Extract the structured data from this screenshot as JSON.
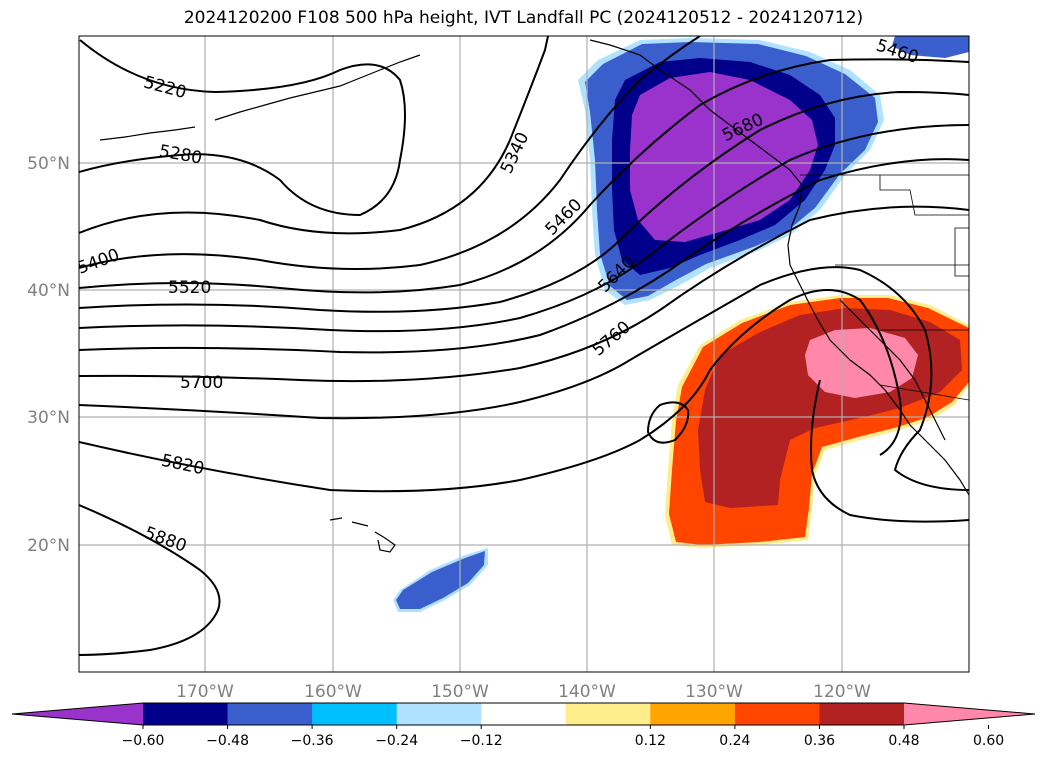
{
  "title": "2024120200 F108 500 hPa height, IVT Landfall PC (2024120512 - 2024120712)",
  "map": {
    "lat_labels": [
      "50°N",
      "40°N",
      "30°N",
      "20°N"
    ],
    "lon_labels": [
      "170°W",
      "160°W",
      "150°W",
      "140°W",
      "130°W",
      "120°W"
    ],
    "contour_labels": [
      "5220",
      "5280",
      "5340",
      "5400",
      "5460",
      "5520",
      "5640",
      "5680",
      "5700",
      "5760",
      "5820",
      "5880",
      "5460"
    ]
  },
  "colorbar": {
    "ticks": [
      "−0.60",
      "−0.48",
      "−0.36",
      "−0.24",
      "−0.12",
      "0.12",
      "0.24",
      "0.36",
      "0.48",
      "0.60"
    ],
    "colors": [
      "#9933cc",
      "#00008b",
      "#3a5fcd",
      "#00bfff",
      "#b0e2ff",
      "#ffffff",
      "#ffec8b",
      "#ffa500",
      "#ff4500",
      "#b22222",
      "#ff88aa"
    ]
  }
}
